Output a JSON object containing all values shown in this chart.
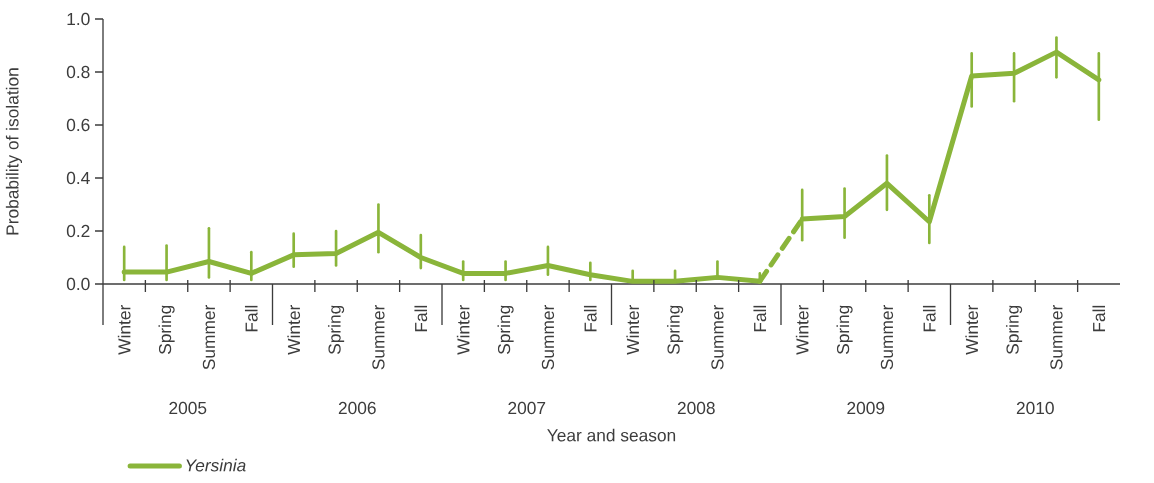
{
  "chart_data": {
    "type": "line",
    "xlabel": "Year and season",
    "ylabel": "Probability of isolation",
    "categories": [
      "Winter",
      "Spring",
      "Summer",
      "Fall",
      "Winter",
      "Spring",
      "Summer",
      "Fall",
      "Winter",
      "Spring",
      "Summer",
      "Fall",
      "Winter",
      "Spring",
      "Summer",
      "Fall",
      "Winter",
      "Spring",
      "Summer",
      "Fall",
      "Winter",
      "Spring",
      "Summer",
      "Fall"
    ],
    "annotations": [
      "2005",
      "2006",
      "2007",
      "2008",
      "2009",
      "2010"
    ],
    "ylim": [
      0,
      1.0
    ],
    "yticks": [
      {
        "value": 0,
        "label": "0.0"
      },
      {
        "value": 0.2,
        "label": "0.2"
      },
      {
        "value": 0.4,
        "label": "0.4"
      },
      {
        "value": 0.6,
        "label": "0.6"
      },
      {
        "value": 0.8,
        "label": "0.8"
      },
      {
        "value": 1.0,
        "label": "1.0"
      }
    ],
    "legend": "bottom left",
    "series": [
      {
        "name": "*Yersinia*",
        "color": "#8ab53a",
        "line_style": "solid",
        "values": [
          0.045,
          0.045,
          0.085,
          0.04,
          0.11,
          0.115,
          0.195,
          0.1,
          0.04,
          0.04,
          0.07,
          0.035,
          0.01,
          0.01,
          0.025,
          0.01,
          null,
          null,
          null,
          null,
          null,
          null,
          null,
          null
        ],
        "errors": [
          [
            0.015,
            0.14
          ],
          [
            0.015,
            0.145
          ],
          [
            0.025,
            0.21
          ],
          [
            0.015,
            0.12
          ],
          [
            0.065,
            0.19
          ],
          [
            0.07,
            0.2
          ],
          [
            0.12,
            0.3
          ],
          [
            0.06,
            0.185
          ],
          [
            0.015,
            0.085
          ],
          [
            0.015,
            0.085
          ],
          [
            0.035,
            0.14
          ],
          [
            0.015,
            0.08
          ],
          [
            0.01,
            0.05
          ],
          [
            0.01,
            0.05
          ],
          [
            0.025,
            0.085
          ],
          [
            0.01,
            0.04
          ],
          null,
          null,
          null,
          null,
          null,
          null,
          null,
          null
        ]
      },
      {
        "color": "#8ab53a",
        "line_style": "dashed",
        "values": [
          null,
          null,
          null,
          null,
          null,
          null,
          null,
          null,
          null,
          null,
          null,
          null,
          null,
          null,
          null,
          0.01,
          0.245,
          null,
          null,
          null,
          null,
          null,
          null,
          null
        ]
      },
      {
        "color": "#8ab53a",
        "line_style": "solid",
        "values": [
          null,
          null,
          null,
          null,
          null,
          null,
          null,
          null,
          null,
          null,
          null,
          null,
          null,
          null,
          null,
          null,
          0.245,
          0.255,
          0.38,
          0.235,
          0.785,
          0.795,
          0.875,
          0.77
        ],
        "errors": [
          null,
          null,
          null,
          null,
          null,
          null,
          null,
          null,
          null,
          null,
          null,
          null,
          null,
          null,
          null,
          null,
          [
            0.165,
            0.355
          ],
          [
            0.175,
            0.36
          ],
          [
            0.28,
            0.485
          ],
          [
            0.155,
            0.335
          ],
          [
            0.67,
            0.87
          ],
          [
            0.69,
            0.87
          ],
          [
            0.78,
            0.93
          ],
          [
            0.62,
            0.87
          ]
        ]
      }
    ]
  }
}
